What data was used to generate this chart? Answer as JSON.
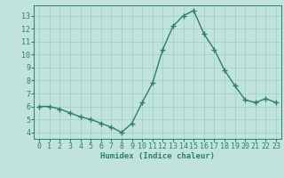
{
  "x": [
    0,
    1,
    2,
    3,
    4,
    5,
    6,
    7,
    8,
    9,
    10,
    11,
    12,
    13,
    14,
    15,
    16,
    17,
    18,
    19,
    20,
    21,
    22,
    23
  ],
  "y": [
    6.0,
    6.0,
    5.8,
    5.5,
    5.2,
    5.0,
    4.7,
    4.4,
    4.0,
    4.7,
    6.3,
    7.8,
    10.4,
    12.2,
    13.0,
    13.4,
    11.6,
    10.4,
    8.8,
    7.6,
    6.5,
    6.3,
    6.6,
    6.3
  ],
  "line_color": "#2e7d6e",
  "marker": "+",
  "bg_color": "#c0e4dc",
  "grid_color": "#9ccec4",
  "xlabel": "Humidex (Indice chaleur)",
  "ylim": [
    3.5,
    13.8
  ],
  "xlim": [
    -0.5,
    23.5
  ],
  "yticks": [
    4,
    5,
    6,
    7,
    8,
    9,
    10,
    11,
    12,
    13
  ],
  "xticks": [
    0,
    1,
    2,
    3,
    4,
    5,
    6,
    7,
    8,
    9,
    10,
    11,
    12,
    13,
    14,
    15,
    16,
    17,
    18,
    19,
    20,
    21,
    22,
    23
  ],
  "label_fontsize": 6.5,
  "tick_fontsize": 6
}
